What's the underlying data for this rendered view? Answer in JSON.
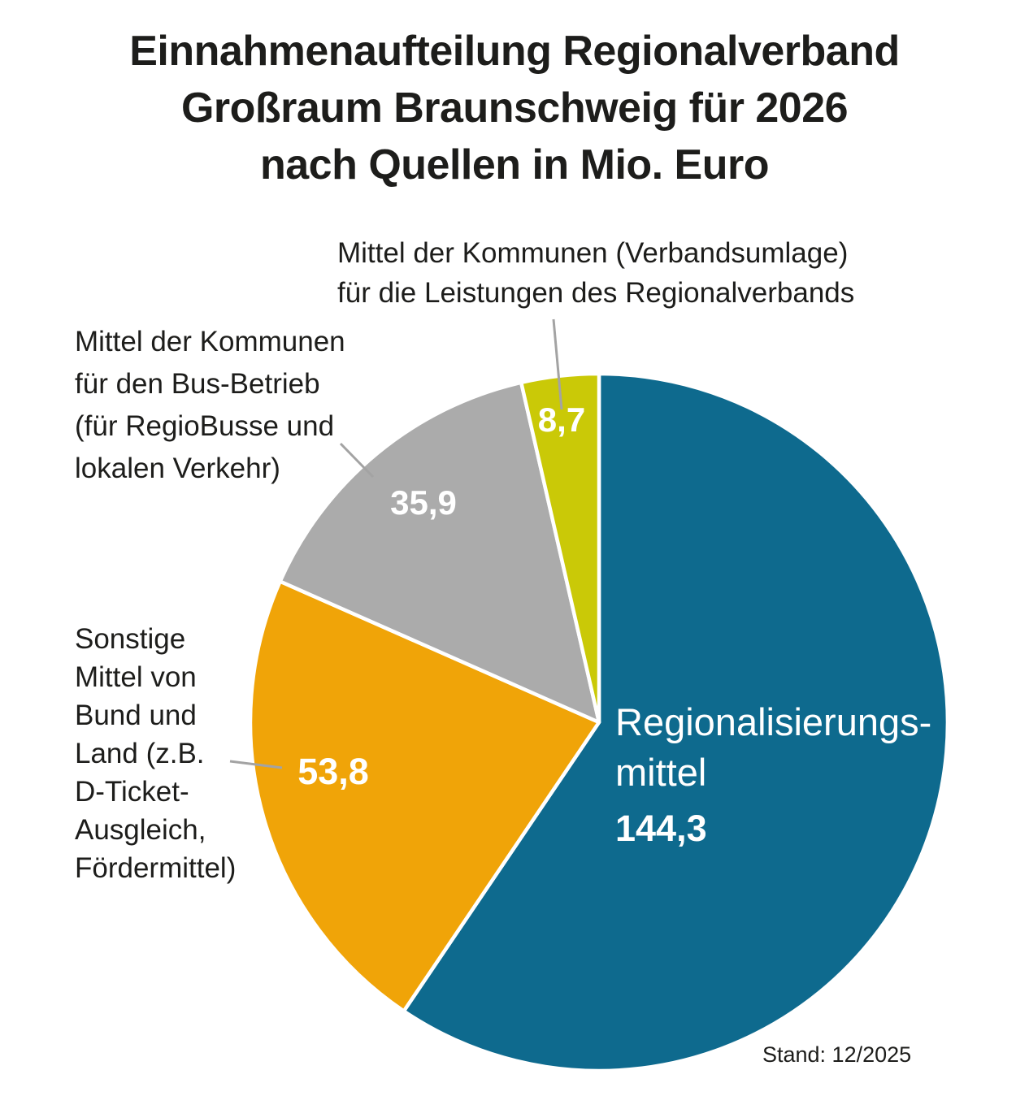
{
  "title": "Einnahmenaufteilung Regionalverband\nGroßraum Braunschweig für 2026\nnach Quellen in Mio. Euro",
  "footnote": "Stand: 12/2025",
  "chart_data": {
    "type": "pie",
    "title": "Einnahmenaufteilung Regionalverband Großraum Braunschweig für 2026 nach Quellen in Mio. Euro",
    "unit": "Mio. Euro",
    "start_angle_deg": 0,
    "direction": "clockwise",
    "legend_position": "external-annotations",
    "slices": [
      {
        "name": "Regionalisierungsmittel",
        "value": 144.3,
        "value_label": "144,3",
        "color": "#0e6a8e",
        "label_display": "Regionalisierungs-\nmittel"
      },
      {
        "name": "Sonstige Mittel von Bund und Land (z.B. D-Ticket-Ausgleich, Fördermittel)",
        "value": 53.8,
        "value_label": "53,8",
        "color": "#f0a408",
        "annotation": "Sonstige\nMittel von\nBund und\nLand (z.B.\nD-Ticket-\nAusgleich,\nFördermittel)"
      },
      {
        "name": "Mittel der Kommunen für den Bus-Betrieb (für RegioBusse und lokalen Verkehr)",
        "value": 35.9,
        "value_label": "35,9",
        "color": "#ababab",
        "annotation": "Mittel der Kommunen\nfür den Bus-Betrieb\n(für RegioBusse und\nlokalen Verkehr)"
      },
      {
        "name": "Mittel der Kommunen (Verbandsumlage) für die Leistungen des Regionalverbands",
        "value": 8.7,
        "value_label": "8,7",
        "color": "#cac907",
        "annotation": "Mittel der Kommunen (Verbandsumlage)\nfür die Leistungen des Regionalverbands"
      }
    ],
    "leader_line_color": "#a3a3a3",
    "text_color": "#1d1d1b"
  }
}
